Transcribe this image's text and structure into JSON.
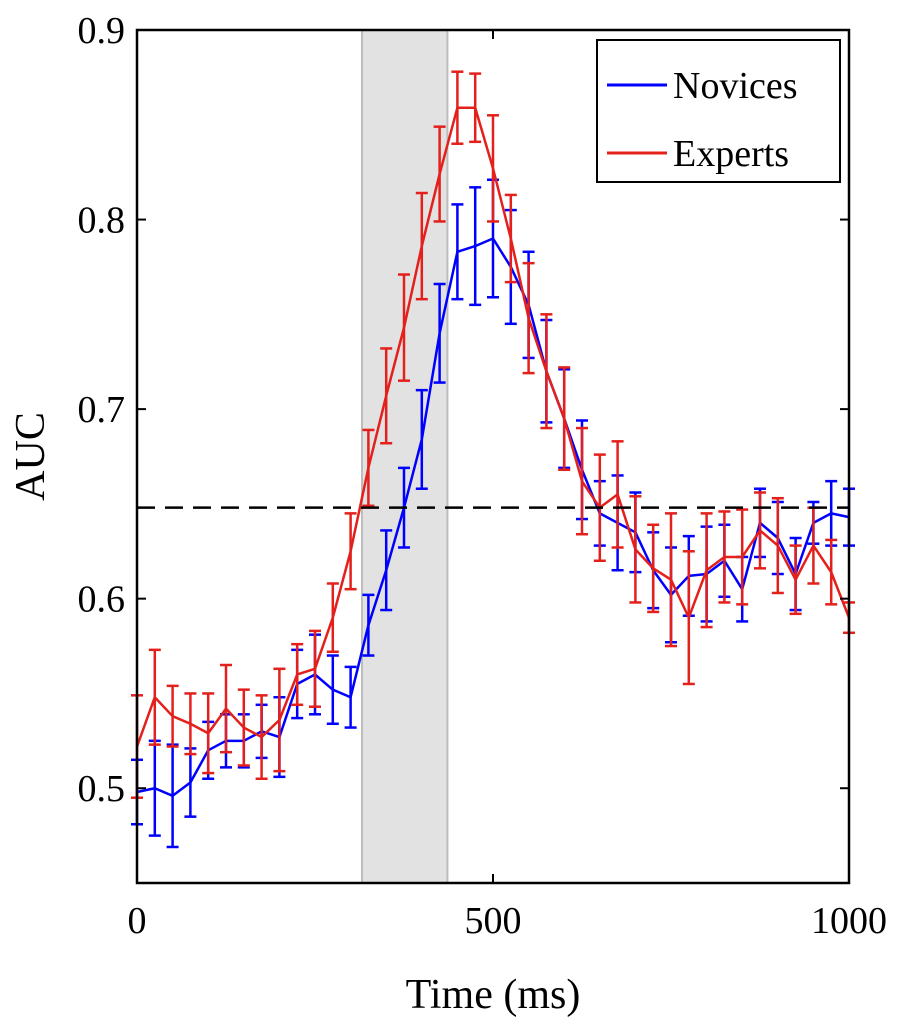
{
  "chart_data": {
    "type": "line",
    "title": "",
    "xlabel": "Time (ms)",
    "ylabel": "AUC",
    "xlim": [
      0,
      1000
    ],
    "ylim": [
      0.45,
      0.9
    ],
    "xticks": [
      0,
      500,
      1000
    ],
    "yticks": [
      0.5,
      0.6,
      0.7,
      0.8,
      0.9
    ],
    "xtick_labels": [
      "0",
      "500",
      "1000"
    ],
    "ytick_labels": [
      "0.5",
      "0.6",
      "0.7",
      "0.8",
      "0.9"
    ],
    "grid": false,
    "legend_position": "top-right",
    "threshold": 0.648,
    "shaded_region": [
      316,
      436
    ],
    "x": [
      0,
      25,
      50,
      75,
      100,
      125,
      150,
      175,
      200,
      225,
      250,
      275,
      300,
      325,
      350,
      375,
      400,
      425,
      450,
      475,
      500,
      525,
      550,
      575,
      600,
      625,
      650,
      675,
      700,
      725,
      750,
      775,
      800,
      825,
      850,
      875,
      900,
      925,
      950,
      975,
      1000
    ],
    "series": [
      {
        "name": "Novices",
        "color": "#0000ff",
        "values": [
          0.498,
          0.5,
          0.496,
          0.503,
          0.52,
          0.525,
          0.525,
          0.53,
          0.527,
          0.555,
          0.56,
          0.552,
          0.548,
          0.586,
          0.615,
          0.648,
          0.684,
          0.74,
          0.783,
          0.786,
          0.79,
          0.775,
          0.755,
          0.72,
          0.695,
          0.668,
          0.645,
          0.64,
          0.635,
          0.615,
          0.602,
          0.612,
          0.613,
          0.62,
          0.605,
          0.64,
          0.632,
          0.613,
          0.64,
          0.645,
          0.643
        ],
        "err": [
          0.017,
          0.025,
          0.027,
          0.018,
          0.015,
          0.014,
          0.014,
          0.014,
          0.021,
          0.018,
          0.021,
          0.018,
          0.016,
          0.016,
          0.021,
          0.021,
          0.026,
          0.026,
          0.025,
          0.031,
          0.031,
          0.03,
          0.028,
          0.027,
          0.026,
          0.026,
          0.017,
          0.025,
          0.021,
          0.02,
          0.025,
          0.021,
          0.025,
          0.019,
          0.017,
          0.018,
          0.019,
          0.019,
          0.011,
          0.017,
          0.015
        ]
      },
      {
        "name": "Experts",
        "color": "#e3201b",
        "values": [
          0.522,
          0.548,
          0.538,
          0.534,
          0.529,
          0.542,
          0.532,
          0.527,
          0.536,
          0.56,
          0.563,
          0.59,
          0.625,
          0.669,
          0.707,
          0.743,
          0.786,
          0.824,
          0.859,
          0.859,
          0.827,
          0.79,
          0.748,
          0.72,
          0.695,
          0.662,
          0.648,
          0.655,
          0.626,
          0.616,
          0.61,
          0.59,
          0.615,
          0.622,
          0.622,
          0.636,
          0.628,
          0.61,
          0.628,
          0.614,
          0.59
        ],
        "err": [
          0.027,
          0.025,
          0.016,
          0.016,
          0.021,
          0.023,
          0.02,
          0.022,
          0.027,
          0.016,
          0.02,
          0.018,
          0.02,
          0.02,
          0.025,
          0.028,
          0.028,
          0.025,
          0.019,
          0.018,
          0.028,
          0.023,
          0.029,
          0.03,
          0.027,
          0.028,
          0.028,
          0.028,
          0.028,
          0.023,
          0.035,
          0.035,
          0.03,
          0.024,
          0.025,
          0.02,
          0.025,
          0.018,
          0.02,
          0.017,
          0.008
        ]
      }
    ]
  }
}
